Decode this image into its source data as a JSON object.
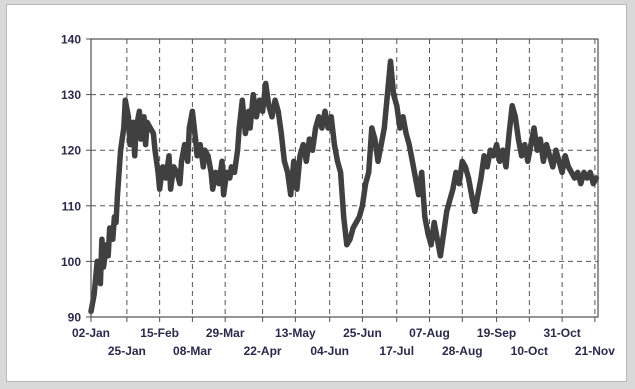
{
  "chart_data": {
    "type": "line",
    "title": "",
    "xlabel": "",
    "ylabel": "",
    "ylim": [
      90,
      140
    ],
    "yticks": [
      90,
      100,
      110,
      120,
      130,
      140
    ],
    "xlim": [
      0,
      325
    ],
    "xtick_labels": [
      {
        "day": 0,
        "label": "02-Jan",
        "row": 1
      },
      {
        "day": 23,
        "label": "25-Jan",
        "row": 2
      },
      {
        "day": 44,
        "label": "15-Feb",
        "row": 1
      },
      {
        "day": 65,
        "label": "08-Mar",
        "row": 2
      },
      {
        "day": 86,
        "label": "29-Mar",
        "row": 1
      },
      {
        "day": 110,
        "label": "22-Apr",
        "row": 2
      },
      {
        "day": 131,
        "label": "13-May",
        "row": 1
      },
      {
        "day": 153,
        "label": "04-Jun",
        "row": 2
      },
      {
        "day": 174,
        "label": "25-Jun",
        "row": 1
      },
      {
        "day": 196,
        "label": "17-Jul",
        "row": 2
      },
      {
        "day": 217,
        "label": "07-Aug",
        "row": 1
      },
      {
        "day": 238,
        "label": "28-Aug",
        "row": 2
      },
      {
        "day": 260,
        "label": "19-Sep",
        "row": 1
      },
      {
        "day": 281,
        "label": "10-Oct",
        "row": 2
      },
      {
        "day": 302,
        "label": "31-Oct",
        "row": 1
      },
      {
        "day": 323,
        "label": "21-Nov",
        "row": 2
      }
    ],
    "grid": true,
    "line_color": "#404040",
    "series": [
      {
        "x": [
          0,
          2,
          4,
          6,
          7,
          8,
          10,
          11,
          12,
          14,
          15,
          16,
          17,
          19,
          21,
          22,
          24,
          25,
          27,
          28,
          29,
          31,
          32,
          34,
          35,
          36,
          38,
          40,
          41,
          43,
          44,
          46,
          48,
          50,
          51,
          53,
          55,
          57,
          58,
          60,
          62,
          63,
          65,
          67,
          68,
          70,
          72,
          73,
          75,
          77,
          78,
          80,
          82,
          84,
          85,
          87,
          89,
          90,
          92,
          94,
          95,
          97,
          99,
          101,
          102,
          104,
          106,
          108,
          110,
          112,
          114,
          116,
          118,
          120,
          122,
          124,
          126,
          128,
          130,
          132,
          134,
          136,
          138,
          140,
          142,
          144,
          146,
          148,
          150,
          152,
          154,
          156,
          158,
          160,
          162,
          164,
          166,
          168,
          170,
          172,
          174,
          176,
          178,
          180,
          182,
          184,
          186,
          188,
          190,
          192,
          194,
          196,
          198,
          200,
          202,
          204,
          206,
          208,
          210,
          212,
          214,
          216,
          218,
          220,
          222,
          224,
          226,
          228,
          230,
          232,
          234,
          236,
          238,
          240,
          242,
          244,
          246,
          248,
          250,
          252,
          254,
          256,
          258,
          260,
          262,
          264,
          266,
          268,
          270,
          272,
          274,
          276,
          278,
          280,
          282,
          284,
          286,
          288,
          290,
          292,
          294,
          296,
          298,
          300,
          302,
          304,
          306,
          308,
          310,
          312,
          314,
          316,
          318,
          320,
          322,
          324
        ],
        "y": [
          91,
          94,
          100,
          96,
          104,
          99,
          103,
          101,
          106,
          104,
          108,
          107,
          112,
          120,
          124,
          129,
          126,
          121,
          125,
          119,
          124,
          127,
          122,
          126,
          121,
          125,
          124,
          123,
          120,
          116,
          113,
          117,
          115,
          119,
          113,
          117,
          116,
          114,
          118,
          121,
          118,
          124,
          127,
          122,
          119,
          121,
          117,
          120,
          119,
          116,
          113,
          116,
          114,
          118,
          112,
          116,
          115,
          117,
          116,
          120,
          124,
          129,
          123,
          127,
          124,
          130,
          126,
          129,
          127,
          132,
          128,
          126,
          129,
          127,
          123,
          118,
          116,
          112,
          118,
          113,
          119,
          121,
          118,
          122,
          120,
          124,
          126,
          124,
          127,
          124,
          126,
          121,
          118,
          116,
          108,
          103,
          104,
          106,
          107,
          108,
          110,
          114,
          116,
          124,
          122,
          118,
          121,
          124,
          130,
          136,
          130,
          128,
          124,
          126,
          123,
          121,
          118,
          115,
          112,
          116,
          108,
          105,
          103,
          107,
          104,
          101,
          105,
          109,
          111,
          113,
          116,
          114,
          118,
          117,
          115,
          112,
          109,
          112,
          115,
          119,
          117,
          120,
          119,
          121,
          118,
          120,
          117,
          123,
          128,
          126,
          122,
          119,
          121,
          118,
          121,
          124,
          120,
          122,
          118,
          121,
          119,
          117,
          120,
          118,
          116,
          119,
          117,
          116,
          115,
          116,
          114,
          116,
          115,
          116,
          114,
          115
        ]
      }
    ]
  }
}
